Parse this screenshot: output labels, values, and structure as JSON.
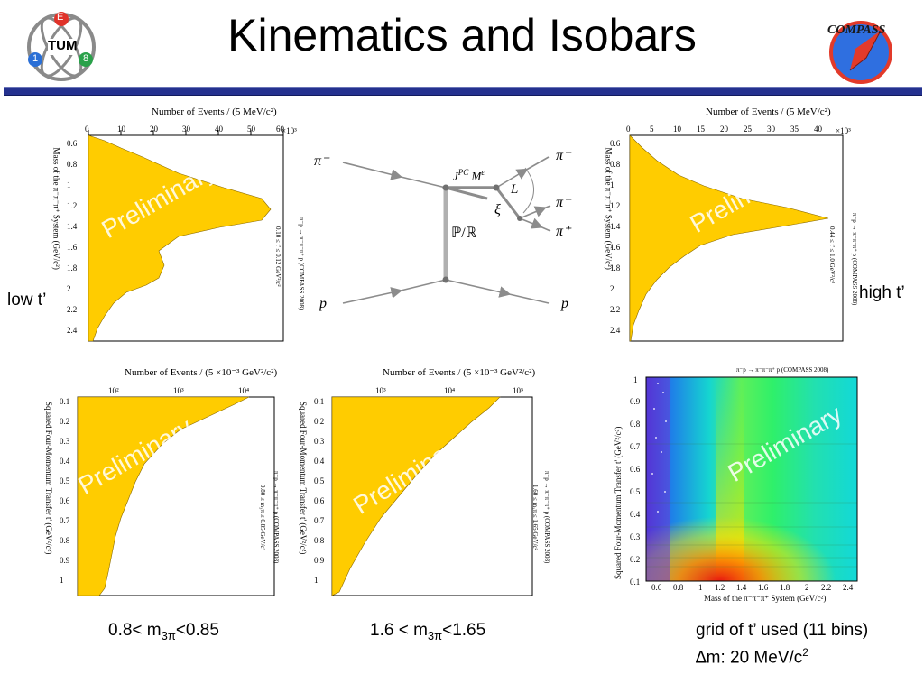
{
  "slide": {
    "title": "Kinematics and Isobars",
    "watermark": "Preliminary",
    "low_t_label": "low t’",
    "high_t_label": "high t’",
    "compass_logo_text": "COMPASS",
    "tum_logo_text": "TUM",
    "tum_logo_letters": [
      "E",
      "1",
      "8"
    ],
    "caption_left": {
      "pre": "0.8< m",
      "sub": "3π",
      "post": "<0.85"
    },
    "caption_mid": {
      "pre": "1.6 < m",
      "sub": "3π",
      "post": "<1.65"
    },
    "caption_right_line1": "grid of t’ used (11 bins)",
    "caption_right_line2": {
      "pre": "∆m: 20 MeV/c",
      "sup": "2"
    }
  },
  "plot_mass_low": {
    "top_label": "Number of Events / (5 MeV/c²)",
    "exponent": "×10³",
    "ticks_top": [
      "0",
      "10",
      "20",
      "30",
      "40",
      "50",
      "60"
    ],
    "ticks_side": [
      "0.6",
      "0.8",
      "1",
      "1.2",
      "1.4",
      "1.6",
      "1.8",
      "2",
      "2.2",
      "2.4"
    ],
    "side_label": "Mass of the π⁻π⁻π⁺ System (GeV/c²)",
    "cut_label": "0.10 ≤ t' ≤ 0.12 GeV²/c²",
    "reaction_label": "π⁻p → π⁻π⁻π⁺ p (COMPASS 2008)"
  },
  "plot_mass_high": {
    "top_label": "Number of Events / (5 MeV/c²)",
    "exponent": "×10³",
    "ticks_top": [
      "0",
      "5",
      "10",
      "15",
      "20",
      "25",
      "30",
      "35",
      "40"
    ],
    "ticks_side": [
      "0.6",
      "0.8",
      "1",
      "1.2",
      "1.4",
      "1.6",
      "1.8",
      "2",
      "2.2",
      "2.4"
    ],
    "side_label": "Mass of the π⁻π⁻π⁺ System (GeV/c²)",
    "cut_label": "0.44 ≤ t' ≤ 1.0 GeV²/c²",
    "reaction_label": "π⁻p → π⁻π⁻π⁺ p (COMPASS 2008)"
  },
  "plot_t_a": {
    "top_label": "Number of Events / (5 ×10⁻³ GeV²/c²)",
    "ticks_top": [
      "10²",
      "10³",
      "10⁴"
    ],
    "ticks_side": [
      "0.1",
      "0.2",
      "0.3",
      "0.4",
      "0.5",
      "0.6",
      "0.7",
      "0.8",
      "0.9",
      "1"
    ],
    "side_label": "Squared Four-Momentum Transfer t' (GeV²/c²)",
    "cut_label": "0.80 ≤ m₃π ≤ 0.85 GeV/c²",
    "reaction_label": "π⁻p → π⁻π⁻π⁺ p (COMPASS 2008)"
  },
  "plot_t_b": {
    "top_label": "Number of Events / (5 ×10⁻³ GeV²/c²)",
    "ticks_top": [
      "10³",
      "10⁴",
      "10⁵"
    ],
    "ticks_side": [
      "0.1",
      "0.2",
      "0.3",
      "0.4",
      "0.5",
      "0.6",
      "0.7",
      "0.8",
      "0.9",
      "1"
    ],
    "side_label": "Squared Four-Momentum Transfer t' (GeV²/c²)",
    "cut_label": "1.60 ≤ m₃π ≤ 1.65 GeV/c²",
    "reaction_label": "π⁻p → π⁻π⁻π⁺ p (COMPASS 2008)"
  },
  "plot_2d": {
    "title": "π⁻p → π⁻π⁻π⁺ p (COMPASS 2008)",
    "xlabel": "Mass of the π⁻π⁻π⁺ System (GeV/c²)",
    "ylabel": "Squared Four-Momentum Transfer t' (GeV²/c²)",
    "xticks": [
      "0.6",
      "0.8",
      "1",
      "1.2",
      "1.4",
      "1.6",
      "1.8",
      "2",
      "2.2",
      "2.4"
    ],
    "yticks": [
      "0.1",
      "0.2",
      "0.3",
      "0.4",
      "0.5",
      "0.6",
      "0.7",
      "0.8",
      "0.9",
      "1"
    ]
  },
  "diagram": {
    "beam": "π⁻",
    "target": "p",
    "recoil": "p",
    "out1": "π⁻",
    "out2": "π⁻",
    "out3": "π⁺",
    "resonance": "J",
    "resonance_sup": "PC",
    "resonance_m": "M",
    "resonance_eps": "ε",
    "exchange": "ℙ/ℝ",
    "orbital": "L",
    "isobar": "ξ"
  },
  "colors": {
    "fill": "#ffcc00",
    "rule": "#24318f",
    "diagram_line": "#8c8c8c",
    "watermark": "#ffffff"
  }
}
